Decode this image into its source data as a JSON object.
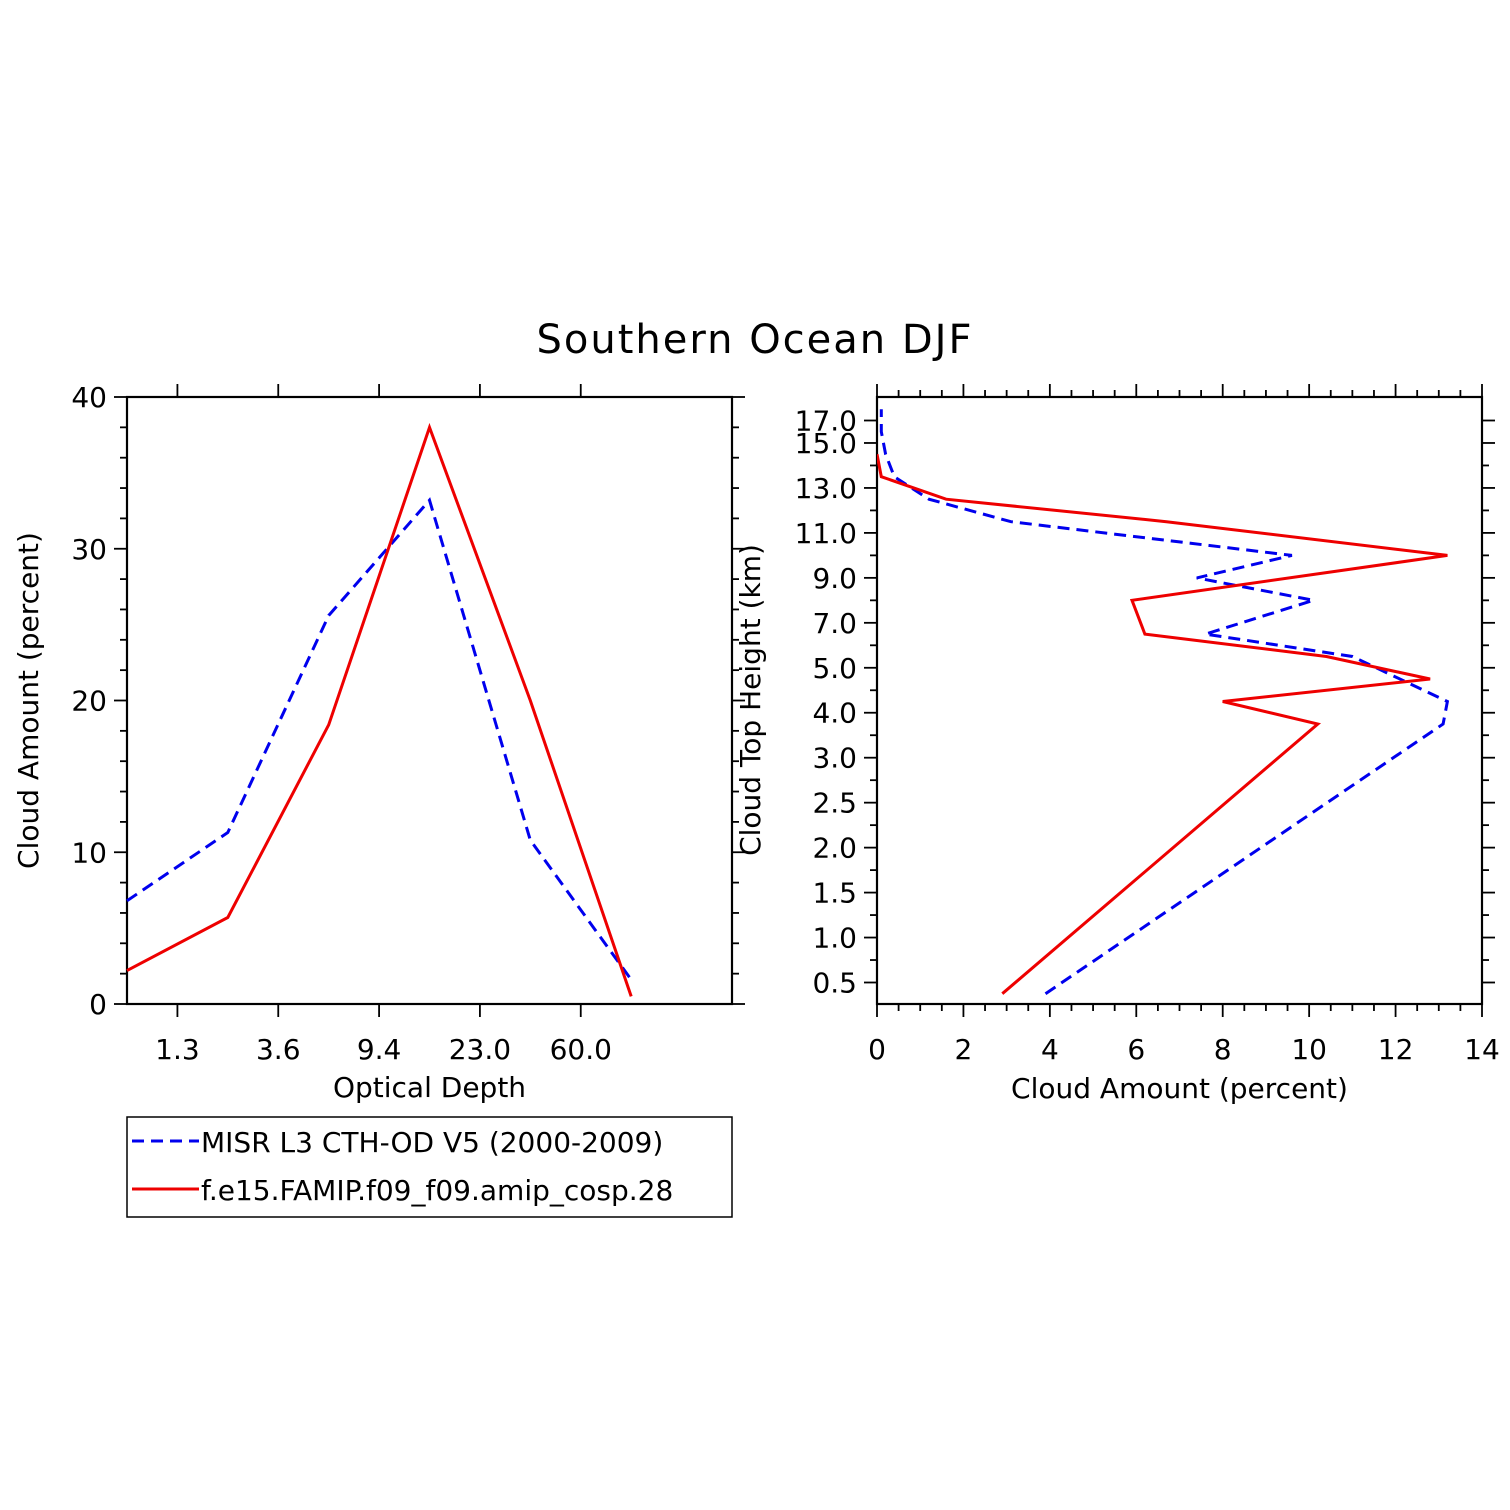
{
  "title": "Southern Ocean DJF",
  "colors": {
    "misr": "#0000ee",
    "model": "#ee0000"
  },
  "legend": {
    "placement": "below-left",
    "entries": [
      {
        "label": "MISR L3 CTH-OD V5 (2000-2009)",
        "color": "#0000ee",
        "style": "dashed"
      },
      {
        "label": "f.e15.FAMIP.f09_f09.amip_cosp.28",
        "color": "#ee0000",
        "style": "solid"
      }
    ]
  },
  "chart_data": [
    {
      "type": "line",
      "xlabel": "Optical Depth",
      "ylabel": "Cloud Amount (percent)",
      "categories": [
        "1.3",
        "3.6",
        "9.4",
        "23.0",
        "60.0"
      ],
      "ylim": [
        0,
        40
      ],
      "yticks": [
        0,
        10,
        20,
        30,
        40
      ],
      "series": [
        {
          "name": "MISR L3 CTH-OD V5 (2000-2009)",
          "style": "dashed",
          "color": "#0000ee",
          "points": [
            [
              0,
              6.8
            ],
            [
              1,
              11.3
            ],
            [
              2,
              25.6
            ],
            [
              3,
              33.2
            ],
            [
              4,
              10.8
            ],
            [
              5,
              1.6
            ]
          ]
        },
        {
          "name": "f.e15.FAMIP.f09_f09.amip_cosp.28",
          "style": "solid",
          "color": "#ee0000",
          "points": [
            [
              0,
              2.2
            ],
            [
              1,
              5.7
            ],
            [
              2,
              18.4
            ],
            [
              3,
              38.0
            ],
            [
              4,
              20.0
            ],
            [
              5,
              0.5
            ]
          ]
        }
      ]
    },
    {
      "type": "line",
      "xlabel": "Cloud Amount (percent)",
      "ylabel": "Cloud Top Height (km)",
      "xlim": [
        0,
        14
      ],
      "xticks": [
        0,
        2,
        4,
        6,
        8,
        10,
        12,
        14
      ],
      "categories": [
        "0.5",
        "1.0",
        "1.5",
        "2.0",
        "2.5",
        "3.0",
        "4.0",
        "5.0",
        "7.0",
        "9.0",
        "11.0",
        "13.0",
        "15.0",
        "17.0"
      ],
      "series": [
        {
          "name": "MISR L3 CTH-OD V5 (2000-2009)",
          "style": "dashed",
          "color": "#0000ee",
          "points": [
            [
              3.9,
              -0.5
            ],
            [
              13.1,
              11.5
            ],
            [
              13.2,
              12.5
            ],
            [
              11.0,
              14.5
            ],
            [
              7.6,
              15.5
            ],
            [
              10.1,
              17.0
            ],
            [
              7.4,
              18.0
            ],
            [
              9.6,
              19.0
            ],
            [
              3.1,
              20.5
            ],
            [
              1.2,
              21.5
            ],
            [
              0.4,
              22.5
            ],
            [
              0.2,
              23.5
            ],
            [
              0.1,
              24.5
            ],
            [
              0.1,
              25.5
            ]
          ]
        },
        {
          "name": "f.e15.FAMIP.f09_f09.amip_cosp.28",
          "style": "solid",
          "color": "#ee0000",
          "points": [
            [
              2.9,
              -0.5
            ],
            [
              10.2,
              11.5
            ],
            [
              8.0,
              12.5
            ],
            [
              12.8,
              13.5
            ],
            [
              10.4,
              14.5
            ],
            [
              6.2,
              15.5
            ],
            [
              5.9,
              17.0
            ],
            [
              13.2,
              19.0
            ],
            [
              6.7,
              20.5
            ],
            [
              1.6,
              21.5
            ],
            [
              0.1,
              22.5
            ],
            [
              0.0,
              23.5
            ]
          ]
        }
      ]
    }
  ]
}
